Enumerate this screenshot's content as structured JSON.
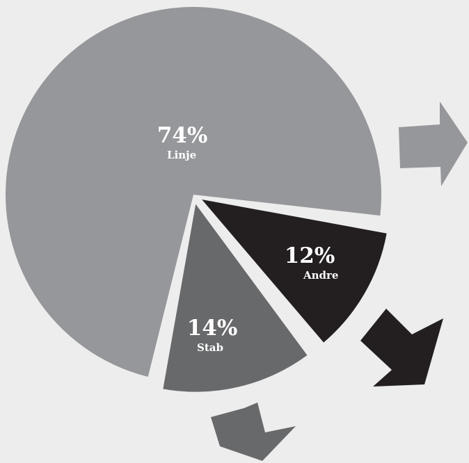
{
  "chart_data": {
    "type": "pie",
    "slices": [
      {
        "label": "Linje",
        "value": 74,
        "value_label": "74%",
        "color": "#96979a"
      },
      {
        "label": "Andre",
        "value": 12,
        "value_label": "12%",
        "color": "#231f20"
      },
      {
        "label": "Stab",
        "value": 14,
        "value_label": "14%",
        "color": "#68696b"
      }
    ],
    "arrows": [
      {
        "for": "Linje",
        "direction": "right",
        "color": "#96979a"
      },
      {
        "for": "Andre",
        "direction": "down-right",
        "color": "#231f20"
      },
      {
        "for": "Stab",
        "direction": "down",
        "color": "#68696b"
      }
    ],
    "background": "#ededed"
  }
}
